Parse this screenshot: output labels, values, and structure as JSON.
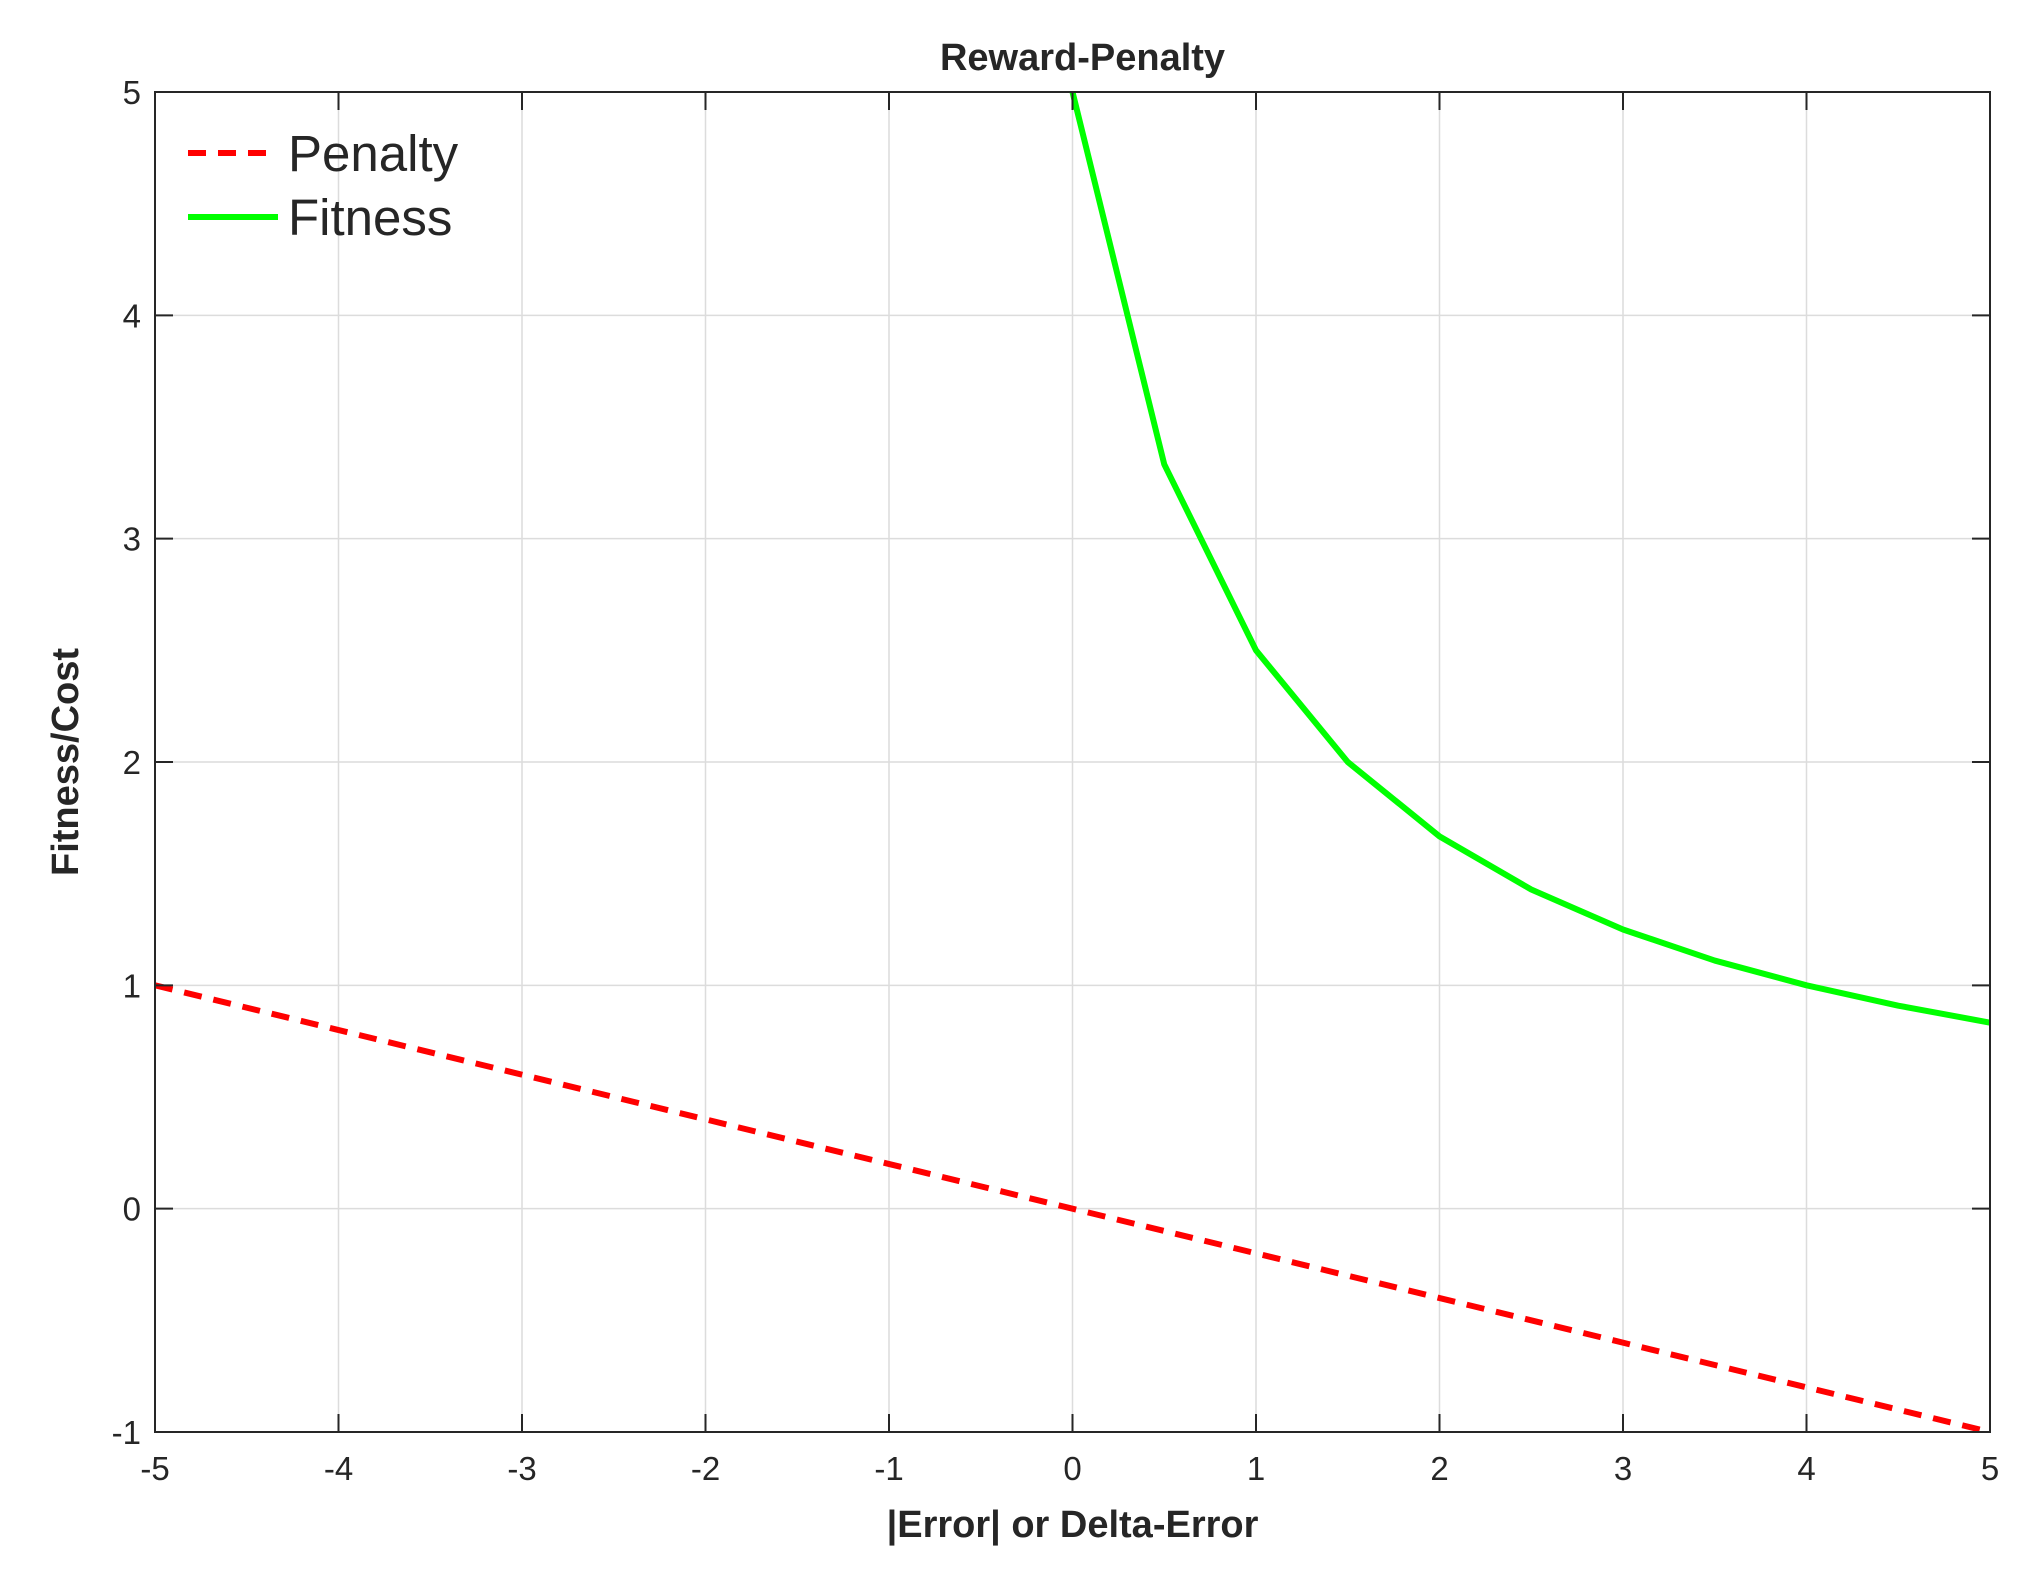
{
  "chart_data": {
    "type": "line",
    "title": "Reward-Penalty",
    "xlabel": "|Error| or Delta-Error",
    "ylabel": "Fitness/Cost",
    "xlim": [
      -5,
      5
    ],
    "ylim": [
      -1,
      5
    ],
    "xticks": [
      -5,
      -4,
      -3,
      -2,
      -1,
      0,
      1,
      2,
      3,
      4,
      5
    ],
    "yticks": [
      -1,
      0,
      1,
      2,
      3,
      4,
      5
    ],
    "grid": true,
    "legend_position": "top-left",
    "series": [
      {
        "name": "Penalty",
        "color": "#ff0000",
        "style": "dashed",
        "x": [
          -5,
          5
        ],
        "y": [
          1,
          -1
        ]
      },
      {
        "name": "Fitness",
        "color": "#00ff00",
        "style": "solid",
        "x": [
          0,
          0.5,
          1,
          1.5,
          2,
          2.5,
          3,
          3.5,
          4,
          4.5,
          5
        ],
        "y": [
          5,
          3.333,
          2.5,
          2,
          1.667,
          1.429,
          1.25,
          1.111,
          1,
          0.909,
          0.833
        ]
      }
    ]
  }
}
